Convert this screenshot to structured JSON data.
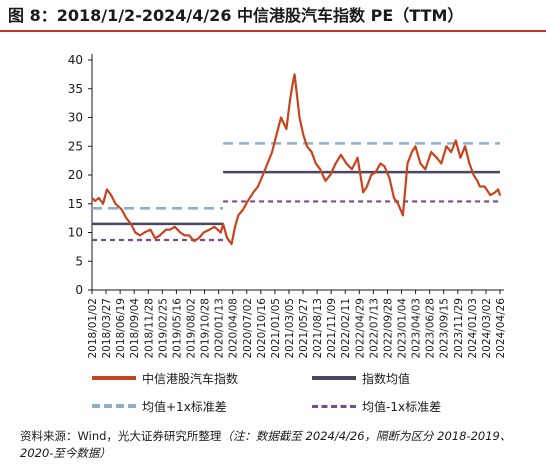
{
  "title": "图 8：2018/1/2-2024/4/26 中信港股汽车指数 PE（TTM）",
  "source": {
    "text": "资料来源：Wind，光大证券研究所整理",
    "note": "（注：数据截至 2024/4/26，隔断为区分 2018-2019、2020-至今数据）"
  },
  "colors": {
    "line": "#c8441f",
    "mean": "#4a4566",
    "plus1sd": "#8fb0c3",
    "minus1sd": "#7b4a8f",
    "axis": "#1a1a1a",
    "title_rule": "#c0392b"
  },
  "chart_data": {
    "type": "line",
    "title": "",
    "xlabel": "",
    "ylabel": "",
    "ylim": [
      0,
      40
    ],
    "yticks": [
      "0",
      "5",
      "10",
      "15",
      "20",
      "25",
      "30",
      "35",
      "40"
    ],
    "xlim": [
      "2018-01-02",
      "2024-04-26"
    ],
    "xticks": [
      "2018/01/02",
      "2018/03/27",
      "2018/06/19",
      "2018/09/04",
      "2018/11/28",
      "2019/02/25",
      "2019/05/16",
      "2019/08/02",
      "2019/10/28",
      "2020/01/13",
      "2020/04/08",
      "2020/07/02",
      "2020/10/16",
      "2021/01/05",
      "2021/03/05",
      "2021/05/27",
      "2021/08/13",
      "2021/11/09",
      "2022/02/11",
      "2022/04/29",
      "2022/07/13",
      "2022/09/28",
      "2023/01/04",
      "2023/04/03",
      "2023/06/28",
      "2023/09/15",
      "2023/11/29",
      "2024/01/03",
      "2024/03/02",
      "2024/04/26"
    ],
    "grid": false,
    "legend_position": "bottom",
    "series": [
      {
        "name": "中信港股汽车指数",
        "x": [
          "2018-01-02",
          "2018-01-20",
          "2018-02-10",
          "2018-03-05",
          "2018-03-27",
          "2018-04-20",
          "2018-05-15",
          "2018-06-19",
          "2018-07-15",
          "2018-08-10",
          "2018-09-04",
          "2018-10-01",
          "2018-10-25",
          "2018-11-28",
          "2018-12-25",
          "2019-01-20",
          "2019-02-25",
          "2019-03-20",
          "2019-04-15",
          "2019-05-16",
          "2019-06-10",
          "2019-07-05",
          "2019-08-02",
          "2019-08-28",
          "2019-09-25",
          "2019-10-28",
          "2019-11-25",
          "2019-12-31",
          "2020-01-13",
          "2020-02-05",
          "2020-03-01",
          "2020-03-20",
          "2020-04-08",
          "2020-05-05",
          "2020-06-01",
          "2020-07-02",
          "2020-07-28",
          "2020-08-25",
          "2020-09-20",
          "2020-10-16",
          "2020-11-10",
          "2020-12-05",
          "2021-01-05",
          "2021-01-25",
          "2021-02-10",
          "2021-02-20",
          "2021-03-05",
          "2021-03-20",
          "2021-04-10",
          "2021-05-01",
          "2021-05-27",
          "2021-06-20",
          "2021-07-15",
          "2021-08-13",
          "2021-09-10",
          "2021-10-10",
          "2021-11-09",
          "2021-12-10",
          "2022-01-10",
          "2022-02-11",
          "2022-03-15",
          "2022-04-05",
          "2022-04-29",
          "2022-05-25",
          "2022-06-20",
          "2022-07-13",
          "2022-08-10",
          "2022-09-05",
          "2022-09-28",
          "2022-10-25",
          "2022-11-20",
          "2022-12-15",
          "2023-01-04",
          "2023-02-01",
          "2023-03-01",
          "2023-04-03",
          "2023-05-05",
          "2023-05-30",
          "2023-06-28",
          "2023-07-25",
          "2023-08-20",
          "2023-09-15",
          "2023-10-12",
          "2023-11-05",
          "2023-11-29",
          "2023-12-20",
          "2024-01-03",
          "2024-01-30",
          "2024-03-02",
          "2024-03-30",
          "2024-04-15",
          "2024-04-26"
        ],
        "values": [
          16,
          15.5,
          16,
          15,
          17.5,
          16.5,
          15,
          14,
          12.5,
          11.5,
          10,
          9.5,
          10,
          10.5,
          9,
          9.5,
          10.5,
          10.5,
          11,
          10,
          9.5,
          9.5,
          8.5,
          9,
          10,
          10.5,
          11,
          10,
          11.5,
          9,
          8,
          11,
          13,
          14,
          15.5,
          17,
          18,
          20,
          22,
          24,
          27,
          30,
          28,
          33,
          36,
          37.5,
          34,
          30,
          27,
          25,
          24,
          22,
          21,
          19,
          20,
          22,
          23.5,
          22,
          21,
          23,
          17,
          18,
          20,
          20.5,
          22,
          21.5,
          19.5,
          16,
          15,
          13,
          22,
          24,
          25,
          22,
          21,
          24,
          23,
          22,
          25,
          24,
          26,
          23,
          25,
          22,
          20,
          19,
          18,
          18,
          16.5,
          17,
          17.5,
          16.5
        ]
      },
      {
        "name": "指数均值",
        "segments": [
          {
            "x": [
              "2018-01-02",
              "2020-01-13"
            ],
            "value": 11.5
          },
          {
            "x": [
              "2020-01-13",
              "2024-04-26"
            ],
            "value": 20.5
          }
        ]
      },
      {
        "name": "均值+1x标准差",
        "segments": [
          {
            "x": [
              "2018-01-02",
              "2020-01-13"
            ],
            "value": 14.2
          },
          {
            "x": [
              "2020-01-13",
              "2024-04-26"
            ],
            "value": 25.5
          }
        ]
      },
      {
        "name": "均值-1x标准差",
        "segments": [
          {
            "x": [
              "2018-01-02",
              "2020-01-13"
            ],
            "value": 8.7
          },
          {
            "x": [
              "2020-01-13",
              "2024-04-26"
            ],
            "value": 15.4
          }
        ]
      }
    ]
  }
}
